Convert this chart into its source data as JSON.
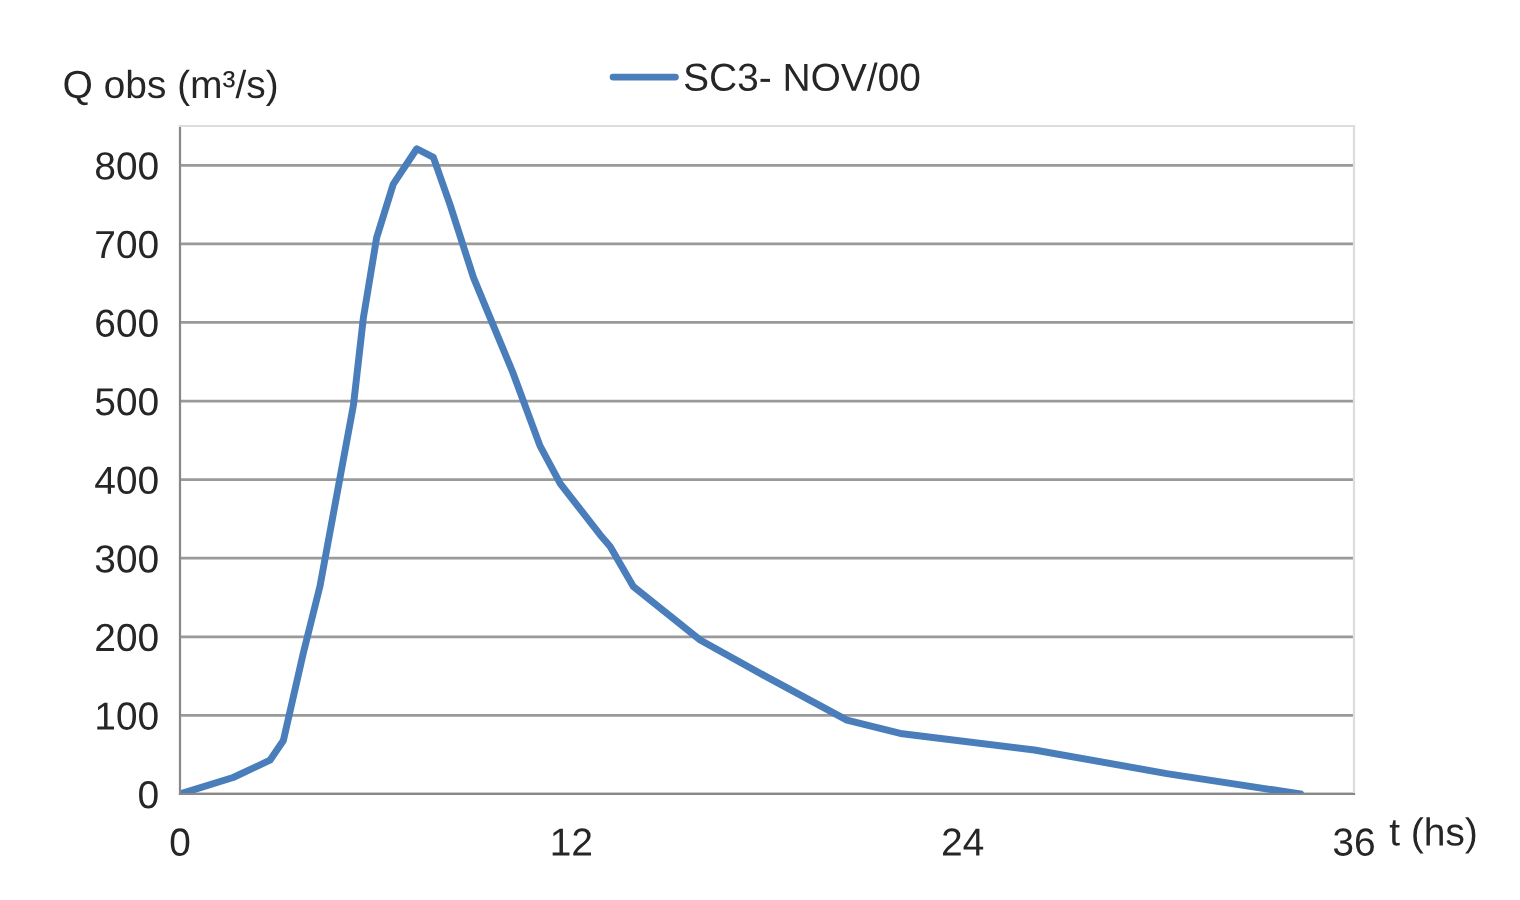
{
  "chart_data": {
    "type": "line",
    "ylabel": "Q obs (m³/s)",
    "xlabel": "t (hs)",
    "x": [
      0,
      1.63,
      2.76,
      3.17,
      3.78,
      4.29,
      4.9,
      5.32,
      5.62,
      6.03,
      6.54,
      7.26,
      7.77,
      8.28,
      9.0,
      9.6,
      10.2,
      11.04,
      11.66,
      12.88,
      13.19,
      13.9,
      15.95,
      17.99,
      20.45,
      22.09,
      26.2,
      30.26,
      34.36
    ],
    "series": [
      {
        "name": "SC3- NOV/00",
        "color": "#4a7ebb",
        "values": [
          0,
          21,
          43,
          68,
          179,
          264,
          401,
          495,
          605,
          708,
          776,
          821,
          810,
          750,
          657,
          597,
          537,
          443,
          395,
          330,
          315,
          264,
          196,
          149,
          94,
          77,
          56,
          26,
          0
        ]
      }
    ],
    "xlim": [
      0,
      36
    ],
    "xticks": [
      0,
      12,
      24,
      36
    ],
    "ylim": [
      0,
      850
    ],
    "yticks": [
      0,
      100,
      200,
      300,
      400,
      500,
      600,
      700,
      800
    ],
    "grid": "y",
    "legend": "top",
    "marker": "none",
    "line_style": "solid"
  }
}
